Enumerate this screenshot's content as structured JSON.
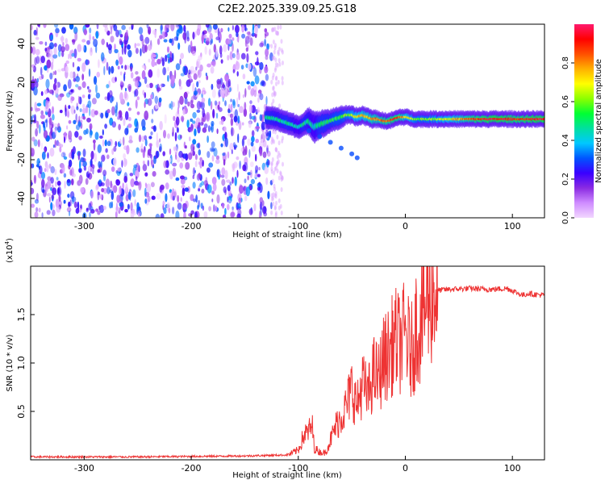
{
  "title": "C2E2.2025.339.09.25.G18",
  "chart_data": [
    {
      "type": "heatmap",
      "xlabel": "Height of straight line (km)",
      "ylabel": "Frequency (Hz)",
      "xlim": [
        -350,
        130
      ],
      "ylim": [
        -50,
        50
      ],
      "xticks": [
        -300,
        -200,
        -100,
        0,
        100
      ],
      "yticks": [
        -40,
        -20,
        0,
        20,
        40
      ],
      "colorbar": {
        "label": "Normalized spectral amplitude",
        "range": [
          0.0,
          1.0
        ],
        "ticks": [
          0.0,
          0.2,
          0.4,
          0.6,
          0.8
        ],
        "colors": [
          "#f2d6ff",
          "#cf8cff",
          "#8a2be2",
          "#3a00ff",
          "#0055ff",
          "#00c8ff",
          "#00e0a0",
          "#00ff33",
          "#8cff00",
          "#ffff00",
          "#ffb000",
          "#ff5000",
          "#ff0000",
          "#ff1a6e"
        ]
      },
      "noise_region": {
        "x": [
          -350,
          -125
        ],
        "amplitude_range": [
          0.0,
          0.35
        ]
      },
      "signal_band": {
        "x": [
          -130,
          -120,
          -110,
          -100,
          -95,
          -90,
          -85,
          -80,
          -75,
          -70,
          -65,
          -60,
          -55,
          -50,
          -45,
          -40,
          -35,
          -30,
          -25,
          -20,
          -15,
          -10,
          -5,
          0,
          10,
          20,
          30,
          40,
          50,
          60,
          70,
          80,
          90,
          100,
          110,
          120,
          130
        ],
        "center_freq": [
          2,
          1,
          -1,
          -3,
          -2,
          0,
          -3,
          -2,
          -1,
          0,
          1,
          2,
          3,
          3,
          2,
          3,
          2,
          1,
          1,
          0,
          0,
          1,
          2,
          2,
          1,
          1,
          1,
          1,
          1,
          1,
          1,
          1,
          1,
          1,
          1,
          1,
          1
        ],
        "half_width": [
          3,
          3,
          3,
          3,
          3,
          4,
          5,
          4,
          4,
          3,
          3,
          3,
          2,
          2,
          2,
          2,
          2,
          2,
          1.5,
          1.5,
          1.5,
          1.5,
          1.5,
          1.5,
          1.5,
          1.5,
          1.5,
          1.5,
          1.5,
          1.5,
          1.5,
          1.5,
          1.5,
          1.5,
          1.5,
          1.5,
          1.5
        ],
        "amplitude": [
          0.5,
          0.45,
          0.5,
          0.4,
          0.5,
          0.45,
          0.4,
          0.5,
          0.5,
          0.5,
          0.55,
          0.55,
          0.6,
          0.65,
          0.7,
          0.75,
          0.75,
          0.8,
          0.8,
          0.85,
          0.85,
          0.9,
          0.85,
          0.75,
          0.6,
          0.6,
          0.65,
          0.7,
          0.75,
          0.85,
          0.9,
          0.95,
          0.95,
          0.9,
          0.9,
          0.95,
          0.95
        ]
      },
      "tail_feature": {
        "x": [
          -90,
          -80,
          -70,
          -60,
          -50,
          -45
        ],
        "freq": [
          -5,
          -8,
          -11,
          -14,
          -17,
          -19
        ]
      }
    },
    {
      "type": "line",
      "xlabel": "Height of straight line (km)",
      "ylabel": "SNR (10 * v/v)",
      "multiplier_label": "(x10",
      "multiplier_exp": "4",
      "multiplier_close": ")",
      "xlim": [
        -350,
        130
      ],
      "ylim": [
        0,
        2.0
      ],
      "xticks": [
        -300,
        -200,
        -100,
        0,
        100
      ],
      "yticks": [
        0.5,
        1.0,
        1.5
      ],
      "ytick_labels": [
        "0.5",
        "1.0",
        "1.5"
      ],
      "series": [
        {
          "color": "#ee3333",
          "x": [
            -350,
            -300,
            -250,
            -200,
            -150,
            -110,
            -100,
            -95,
            -90,
            -87,
            -85,
            -80,
            -75,
            -70,
            -65,
            -60,
            -55,
            -50,
            -45,
            -40,
            -35,
            -30,
            -25,
            -20,
            -15,
            -10,
            -5,
            0,
            5,
            8,
            10,
            13,
            16,
            20,
            25,
            30,
            40,
            60,
            80,
            95,
            100,
            105,
            110,
            115,
            120,
            130
          ],
          "y": [
            0.03,
            0.03,
            0.03,
            0.035,
            0.04,
            0.05,
            0.1,
            0.25,
            0.3,
            0.35,
            0.12,
            0.08,
            0.07,
            0.2,
            0.35,
            0.45,
            0.55,
            0.75,
            0.55,
            0.8,
            0.65,
            0.9,
            0.85,
            1.05,
            1.1,
            1.25,
            1.2,
            1.3,
            1.1,
            1.2,
            1.4,
            1.35,
            1.5,
            1.65,
            1.72,
            1.75,
            1.76,
            1.77,
            1.76,
            1.77,
            1.75,
            1.72,
            1.7,
            1.72,
            1.71,
            1.7
          ]
        }
      ]
    }
  ]
}
